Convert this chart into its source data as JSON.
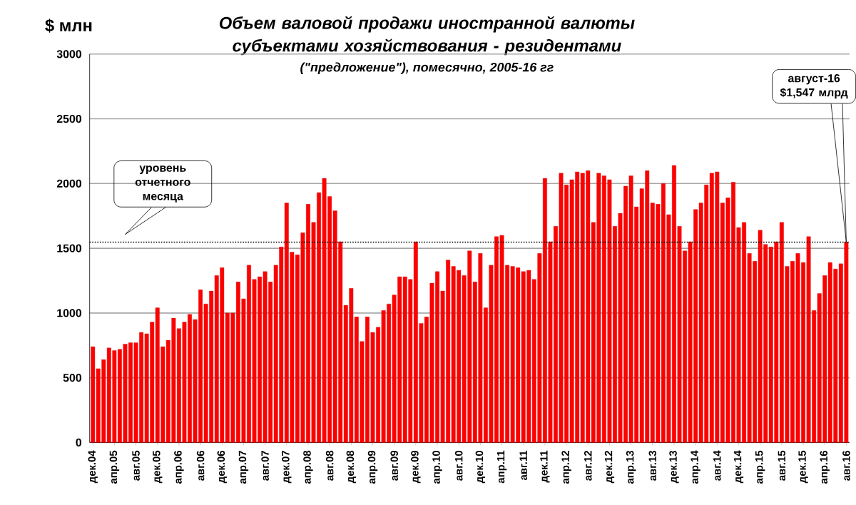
{
  "chart_data": {
    "type": "bar",
    "title": "Объем валовой продажи иностранной валюты субъектами хозяйствования - резидентами",
    "subtitle": "(\"предложение\"), помесячно, 2005-16 гг",
    "categories": [
      "дек.04",
      null,
      null,
      null,
      "апр.05",
      null,
      null,
      null,
      "авг.05",
      null,
      null,
      null,
      "дек.05",
      null,
      null,
      null,
      "апр.06",
      null,
      null,
      null,
      "авг.06",
      null,
      null,
      null,
      "дек.06",
      null,
      null,
      null,
      "апр.07",
      null,
      null,
      null,
      "авг.07",
      null,
      null,
      null,
      "дек.07",
      null,
      null,
      null,
      "апр.08",
      null,
      null,
      null,
      "авг.08",
      null,
      null,
      null,
      "дек.08",
      null,
      null,
      null,
      "апр.09",
      null,
      null,
      null,
      "авг.09",
      null,
      null,
      null,
      "дек.09",
      null,
      null,
      null,
      "апр.10",
      null,
      null,
      null,
      "авг.10",
      null,
      null,
      null,
      "дек.10",
      null,
      null,
      null,
      "апр.11",
      null,
      null,
      null,
      "авг.11",
      null,
      null,
      null,
      "дек.11",
      null,
      null,
      null,
      "апр.12",
      null,
      null,
      null,
      "авг.12",
      null,
      null,
      null,
      "дек.12",
      null,
      null,
      null,
      "апр.13",
      null,
      null,
      null,
      "авг.13",
      null,
      null,
      null,
      "дек.13",
      null,
      null,
      null,
      "апр.14",
      null,
      null,
      null,
      "авг.14",
      null,
      null,
      null,
      "дек.14",
      null,
      null,
      null,
      "апр.15",
      null,
      null,
      null,
      "авг.15",
      null,
      null,
      null,
      "дек.15",
      null,
      null,
      null,
      "апр.16",
      null,
      null,
      null,
      "авг.16"
    ],
    "values": [
      740,
      570,
      640,
      730,
      710,
      720,
      760,
      770,
      770,
      850,
      840,
      930,
      1040,
      740,
      790,
      960,
      880,
      930,
      990,
      950,
      1180,
      1070,
      1170,
      1290,
      1350,
      1000,
      1000,
      1240,
      1110,
      1370,
      1260,
      1280,
      1320,
      1240,
      1370,
      1510,
      1850,
      1470,
      1450,
      1620,
      1840,
      1700,
      1930,
      2040,
      1900,
      1790,
      1550,
      1060,
      1190,
      970,
      780,
      970,
      850,
      890,
      1020,
      1070,
      1140,
      1280,
      1280,
      1260,
      1550,
      920,
      970,
      1230,
      1320,
      1170,
      1410,
      1360,
      1330,
      1290,
      1480,
      1240,
      1460,
      1040,
      1370,
      1590,
      1600,
      1370,
      1360,
      1350,
      1320,
      1330,
      1260,
      1460,
      2040,
      1550,
      1670,
      2080,
      1990,
      2030,
      2090,
      2080,
      2100,
      1700,
      2080,
      2060,
      2030,
      1670,
      1770,
      1980,
      2060,
      1820,
      1960,
      2100,
      1850,
      1840,
      2000,
      1760,
      2140,
      1670,
      1480,
      1550,
      1800,
      1850,
      1990,
      2080,
      2090,
      1850,
      1890,
      2010,
      1660,
      1700,
      1460,
      1400,
      1640,
      1530,
      1510,
      1550,
      1700,
      1360,
      1400,
      1460,
      1390,
      1590,
      1020,
      1150,
      1290,
      1390,
      1340,
      1380,
      1547
    ],
    "color": "#ff0000",
    "ylim": [
      0,
      3000
    ],
    "yticks": [
      0,
      500,
      1000,
      1500,
      2000,
      2500,
      3000
    ],
    "grid": "y",
    "ref_lines": [
      {
        "axis": "y",
        "value": 1547,
        "label": "уровень отчетного месяца",
        "line_style": "dotted",
        "color": "#000000"
      }
    ],
    "annotations": [
      "$ млн",
      "август-16 $1,547 млрд"
    ]
  }
}
